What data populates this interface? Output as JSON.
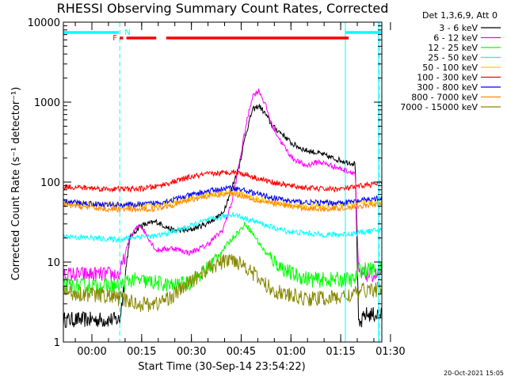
{
  "chart_data": {
    "type": "line",
    "title": "RHESSI Observing Summary Count Rates, Corrected",
    "ylabel": "Corrected Count Rate (s⁻¹ detector⁻¹)",
    "xlabel": "Start Time (30-Sep-14 23:54:22)",
    "x_unit": "minutes since start",
    "xlim": [
      -3,
      93
    ],
    "ylim": [
      1,
      10000
    ],
    "yscale": "log",
    "y_ticks": [
      {
        "value": 1,
        "label": "1"
      },
      {
        "value": 10,
        "label": "10"
      },
      {
        "value": 100,
        "label": "100"
      },
      {
        "value": 1000,
        "label": "1000"
      },
      {
        "value": 10000,
        "label": "10000"
      }
    ],
    "x_ticks": [
      {
        "value": 5.6,
        "label": "00:00"
      },
      {
        "value": 20.6,
        "label": "00:15"
      },
      {
        "value": 35.6,
        "label": "00:30"
      },
      {
        "value": 50.6,
        "label": "00:45"
      },
      {
        "value": 65.6,
        "label": "01:00"
      },
      {
        "value": 80.6,
        "label": "01:15"
      },
      {
        "value": 95.6,
        "label": "01:30"
      }
    ],
    "legend_header": "Det 1,3,6,9, Att 0",
    "legend_position": "outside-right",
    "series": [
      {
        "name": "3 - 6 keV",
        "color": "#000000",
        "points": [
          [
            -3,
            1.9
          ],
          [
            14,
            1.9
          ],
          [
            17,
            20
          ],
          [
            20,
            28
          ],
          [
            25,
            32
          ],
          [
            30,
            25
          ],
          [
            35,
            25
          ],
          [
            40,
            30
          ],
          [
            45,
            40
          ],
          [
            48,
            90
          ],
          [
            50,
            160
          ],
          [
            52,
            400
          ],
          [
            54,
            800
          ],
          [
            56,
            900
          ],
          [
            58,
            700
          ],
          [
            60,
            500
          ],
          [
            63,
            400
          ],
          [
            66,
            300
          ],
          [
            70,
            250
          ],
          [
            74,
            230
          ],
          [
            78,
            200
          ],
          [
            82,
            180
          ],
          [
            85,
            170
          ],
          [
            86,
            1.5
          ],
          [
            88,
            2.2
          ],
          [
            92,
            2.2
          ]
        ]
      },
      {
        "name": "6 - 12 keV",
        "color": "#ff00ff",
        "points": [
          [
            -3,
            7
          ],
          [
            14,
            7
          ],
          [
            17,
            20
          ],
          [
            20,
            30
          ],
          [
            25,
            14
          ],
          [
            30,
            15
          ],
          [
            35,
            13
          ],
          [
            40,
            16
          ],
          [
            45,
            25
          ],
          [
            48,
            60
          ],
          [
            50,
            170
          ],
          [
            52,
            500
          ],
          [
            54,
            1200
          ],
          [
            56,
            1400
          ],
          [
            58,
            900
          ],
          [
            60,
            500
          ],
          [
            63,
            300
          ],
          [
            66,
            200
          ],
          [
            70,
            160
          ],
          [
            74,
            180
          ],
          [
            78,
            160
          ],
          [
            82,
            140
          ],
          [
            85,
            130
          ],
          [
            86,
            7
          ],
          [
            92,
            7
          ]
        ]
      },
      {
        "name": "12 - 25 keV",
        "color": "#00ff00",
        "points": [
          [
            -3,
            5
          ],
          [
            14,
            5
          ],
          [
            17,
            6
          ],
          [
            25,
            5.5
          ],
          [
            30,
            5
          ],
          [
            35,
            5.5
          ],
          [
            40,
            8
          ],
          [
            45,
            14
          ],
          [
            48,
            20
          ],
          [
            52,
            30
          ],
          [
            55,
            20
          ],
          [
            58,
            13
          ],
          [
            62,
            9
          ],
          [
            66,
            7
          ],
          [
            72,
            6
          ],
          [
            78,
            6
          ],
          [
            85,
            6
          ],
          [
            86,
            8
          ],
          [
            92,
            8
          ]
        ]
      },
      {
        "name": "25 - 50 keV",
        "color": "#00ffff",
        "points": [
          [
            -3,
            21
          ],
          [
            14,
            19
          ],
          [
            20,
            21
          ],
          [
            25,
            21
          ],
          [
            30,
            24
          ],
          [
            35,
            28
          ],
          [
            40,
            33
          ],
          [
            45,
            37
          ],
          [
            48,
            40
          ],
          [
            51,
            36
          ],
          [
            55,
            32
          ],
          [
            60,
            27
          ],
          [
            65,
            24
          ],
          [
            70,
            23
          ],
          [
            75,
            22
          ],
          [
            80,
            22
          ],
          [
            85,
            23
          ],
          [
            88,
            24
          ],
          [
            92,
            25
          ]
        ]
      },
      {
        "name": "50 - 100 keV",
        "color": "#ffcc00",
        "points": [
          [
            -3,
            55
          ],
          [
            10,
            52
          ],
          [
            20,
            51
          ],
          [
            25,
            52
          ],
          [
            30,
            55
          ],
          [
            35,
            62
          ],
          [
            40,
            70
          ],
          [
            45,
            75
          ],
          [
            48,
            76
          ],
          [
            52,
            70
          ],
          [
            56,
            60
          ],
          [
            60,
            56
          ],
          [
            65,
            52
          ],
          [
            70,
            50
          ],
          [
            75,
            50
          ],
          [
            80,
            52
          ],
          [
            85,
            54
          ],
          [
            88,
            55
          ],
          [
            92,
            55
          ]
        ]
      },
      {
        "name": "100 - 300 keV",
        "color": "#ff0000",
        "points": [
          [
            -3,
            88
          ],
          [
            10,
            82
          ],
          [
            20,
            82
          ],
          [
            25,
            88
          ],
          [
            30,
            100
          ],
          [
            35,
            115
          ],
          [
            40,
            125
          ],
          [
            45,
            130
          ],
          [
            48,
            135
          ],
          [
            52,
            125
          ],
          [
            56,
            110
          ],
          [
            60,
            100
          ],
          [
            65,
            90
          ],
          [
            70,
            85
          ],
          [
            75,
            82
          ],
          [
            80,
            82
          ],
          [
            85,
            86
          ],
          [
            88,
            92
          ],
          [
            92,
            95
          ]
        ]
      },
      {
        "name": "300 - 800 keV",
        "color": "#0000ff",
        "points": [
          [
            -3,
            57
          ],
          [
            10,
            52
          ],
          [
            20,
            52
          ],
          [
            25,
            55
          ],
          [
            30,
            60
          ],
          [
            35,
            68
          ],
          [
            40,
            76
          ],
          [
            45,
            82
          ],
          [
            48,
            85
          ],
          [
            52,
            78
          ],
          [
            56,
            70
          ],
          [
            60,
            64
          ],
          [
            65,
            58
          ],
          [
            70,
            56
          ],
          [
            75,
            55
          ],
          [
            80,
            55
          ],
          [
            85,
            57
          ],
          [
            88,
            60
          ],
          [
            92,
            62
          ]
        ]
      },
      {
        "name": "800 - 7000 keV",
        "color": "#ff8800",
        "points": [
          [
            -3,
            52
          ],
          [
            10,
            46
          ],
          [
            20,
            45
          ],
          [
            25,
            47
          ],
          [
            30,
            52
          ],
          [
            35,
            60
          ],
          [
            40,
            66
          ],
          [
            45,
            70
          ],
          [
            48,
            72
          ],
          [
            52,
            66
          ],
          [
            56,
            58
          ],
          [
            60,
            54
          ],
          [
            65,
            50
          ],
          [
            70,
            47
          ],
          [
            75,
            46
          ],
          [
            80,
            47
          ],
          [
            85,
            49
          ],
          [
            88,
            51
          ],
          [
            92,
            52
          ]
        ]
      },
      {
        "name": "7000 - 15000 keV",
        "color": "#888800",
        "points": [
          [
            -3,
            4.2
          ],
          [
            10,
            3.8
          ],
          [
            14,
            3.5
          ],
          [
            20,
            3.0
          ],
          [
            25,
            3.0
          ],
          [
            30,
            3.8
          ],
          [
            35,
            5.5
          ],
          [
            40,
            8
          ],
          [
            45,
            10
          ],
          [
            48,
            11
          ],
          [
            52,
            9
          ],
          [
            56,
            6
          ],
          [
            60,
            4.5
          ],
          [
            65,
            3.8
          ],
          [
            70,
            3.5
          ],
          [
            75,
            3.5
          ],
          [
            80,
            3.6
          ],
          [
            85,
            4.0
          ],
          [
            88,
            4.5
          ],
          [
            92,
            4.6
          ]
        ]
      }
    ],
    "annotations": {
      "labels": [
        {
          "text": "F",
          "color": "#ff0000"
        },
        {
          "text": "N",
          "color": "#00ffff"
        }
      ],
      "night_segments": [
        [
          -3,
          13.7
        ],
        [
          82,
          93
        ]
      ],
      "flare_segments": [
        [
          14,
          15
        ],
        [
          16,
          25
        ],
        [
          28,
          83
        ]
      ],
      "vlines_solid": [
        82,
        92
      ],
      "vlines_dashed": [
        14,
        92.3
      ]
    },
    "footer_date": "20-Oct-2021 15:05"
  }
}
